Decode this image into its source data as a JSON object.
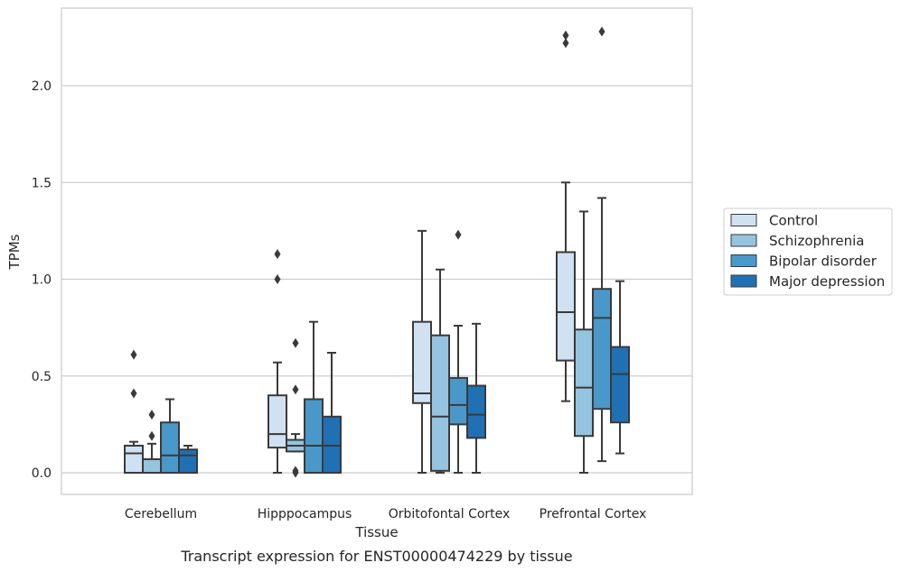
{
  "caption": "Transcript expression for ENST00000474229 by tissue",
  "chart_data": {
    "type": "box",
    "title": "",
    "xlabel": "Tissue",
    "ylabel": "TPMs",
    "ylim": [
      -0.11,
      2.4
    ],
    "yticks": [
      "0.0",
      "0.5",
      "1.0",
      "1.5",
      "2.0"
    ],
    "ytick_values": [
      0,
      0.5,
      1.0,
      1.5,
      2.0
    ],
    "grid": true,
    "legend_position": "right",
    "categories": [
      "Cerebellum",
      "Hipppocampus",
      "Orbitofontal Cortex",
      "Prefrontal Cortex"
    ],
    "series": [
      {
        "name": "Control",
        "color": "#d0e1f2",
        "boxes": [
          {
            "whislo": 0.0,
            "q1": 0.0,
            "med": 0.1,
            "q3": 0.14,
            "whishi": 0.16,
            "fliers": [
              0.41,
              0.61
            ]
          },
          {
            "whislo": 0.0,
            "q1": 0.13,
            "med": 0.2,
            "q3": 0.4,
            "whishi": 0.57,
            "fliers": [
              1.0,
              1.13
            ]
          },
          {
            "whislo": 0.0,
            "q1": 0.36,
            "med": 0.41,
            "q3": 0.78,
            "whishi": 1.25,
            "fliers": []
          },
          {
            "whislo": 0.37,
            "q1": 0.58,
            "med": 0.83,
            "q3": 1.14,
            "whishi": 1.5,
            "fliers": [
              2.22,
              2.26
            ]
          }
        ]
      },
      {
        "name": "Schizophrenia",
        "color": "#94c4df",
        "boxes": [
          {
            "whislo": 0.0,
            "q1": 0.0,
            "med": 0.0,
            "q3": 0.07,
            "whishi": 0.15,
            "fliers": [
              0.19,
              0.3
            ]
          },
          {
            "whislo": 0.11,
            "q1": 0.11,
            "med": 0.14,
            "q3": 0.17,
            "whishi": 0.2,
            "fliers": [
              0.0,
              0.01,
              0.43,
              0.67
            ]
          },
          {
            "whislo": 0.0,
            "q1": 0.01,
            "med": 0.29,
            "q3": 0.71,
            "whishi": 1.05,
            "fliers": []
          },
          {
            "whislo": 0.0,
            "q1": 0.19,
            "med": 0.44,
            "q3": 0.74,
            "whishi": 1.35,
            "fliers": []
          }
        ]
      },
      {
        "name": "Bipolar disorder",
        "color": "#4a98c9",
        "boxes": [
          {
            "whislo": 0.0,
            "q1": 0.0,
            "med": 0.09,
            "q3": 0.26,
            "whishi": 0.38,
            "fliers": []
          },
          {
            "whislo": 0.0,
            "q1": 0.0,
            "med": 0.14,
            "q3": 0.38,
            "whishi": 0.78,
            "fliers": []
          },
          {
            "whislo": 0.0,
            "q1": 0.25,
            "med": 0.35,
            "q3": 0.49,
            "whishi": 0.76,
            "fliers": [
              1.23
            ]
          },
          {
            "whislo": 0.06,
            "q1": 0.33,
            "med": 0.8,
            "q3": 0.95,
            "whishi": 1.42,
            "fliers": [
              2.28
            ]
          }
        ]
      },
      {
        "name": "Major depression",
        "color": "#2070b4",
        "boxes": [
          {
            "whislo": 0.0,
            "q1": 0.0,
            "med": 0.09,
            "q3": 0.12,
            "whishi": 0.14,
            "fliers": []
          },
          {
            "whislo": 0.0,
            "q1": 0.0,
            "med": 0.14,
            "q3": 0.29,
            "whishi": 0.62,
            "fliers": []
          },
          {
            "whislo": 0.0,
            "q1": 0.18,
            "med": 0.3,
            "q3": 0.45,
            "whishi": 0.77,
            "fliers": []
          },
          {
            "whislo": 0.1,
            "q1": 0.26,
            "med": 0.51,
            "q3": 0.65,
            "whishi": 0.99,
            "fliers": []
          }
        ]
      }
    ]
  }
}
